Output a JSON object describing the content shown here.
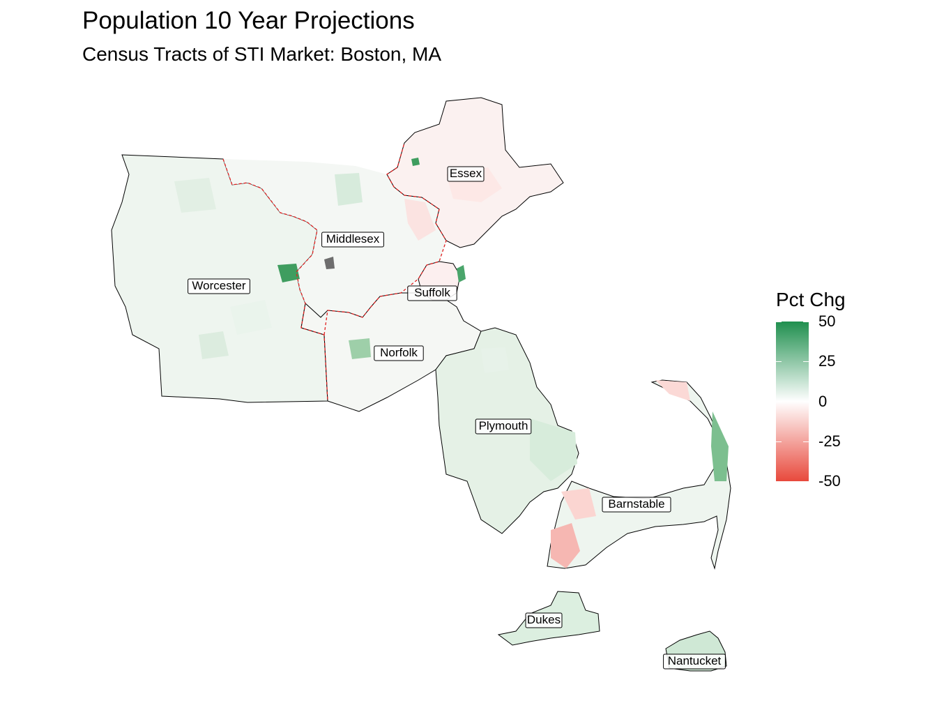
{
  "title": "Population 10 Year Projections",
  "subtitle": "Census Tracts of STI Market: Boston, MA",
  "legend": {
    "title": "Pct Chg",
    "ticks": [
      "50",
      "25",
      "0",
      "-25",
      "-50"
    ],
    "tick_values": [
      50,
      25,
      0,
      -25,
      -50
    ],
    "range": [
      -50,
      50
    ],
    "colors": {
      "low": "#e8493c",
      "mid": "#ffffff",
      "high": "#1f8f4e"
    }
  },
  "counties": [
    {
      "name": "Essex",
      "fill": "#fbf1f0"
    },
    {
      "name": "Middlesex",
      "fill": "#f4f7f4"
    },
    {
      "name": "Worcester",
      "fill": "#eef5ef"
    },
    {
      "name": "Suffolk",
      "fill": "#fcefef"
    },
    {
      "name": "Norfolk",
      "fill": "#f5f7f4"
    },
    {
      "name": "Plymouth",
      "fill": "#e5f1e6"
    },
    {
      "name": "Barnstable",
      "fill": "#eef5ef"
    },
    {
      "name": "Dukes",
      "fill": "#dcefe0"
    },
    {
      "name": "Nantucket",
      "fill": "#cfe8d5"
    }
  ],
  "boundary_colors": {
    "county_outline": "#000000",
    "sti_boundary": "#e02020"
  }
}
